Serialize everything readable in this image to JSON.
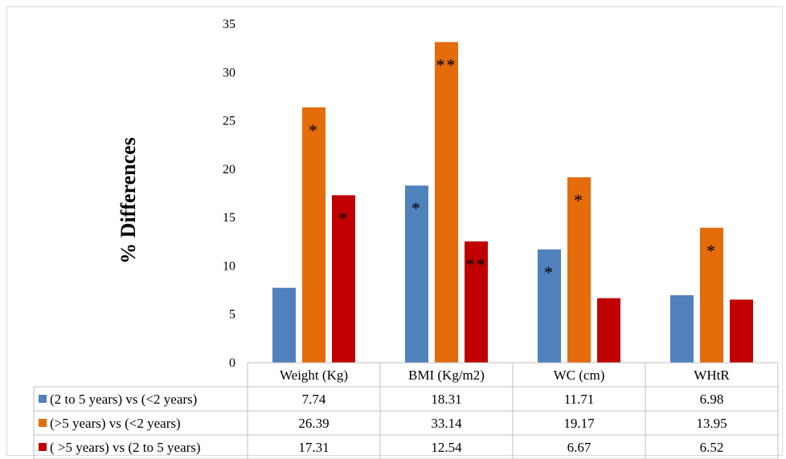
{
  "chart_data": {
    "type": "bar",
    "ylabel": "% Differences",
    "ylim": [
      0,
      35
    ],
    "yticks": [
      0,
      5,
      10,
      15,
      20,
      25,
      30,
      35
    ],
    "grid": false,
    "legend": "table-below",
    "categories": [
      "Weight (Kg)",
      "BMI (Kg/m2)",
      "WC (cm)",
      "WHtR"
    ],
    "series": [
      {
        "name": "(2 to 5 years) vs (<2 years)",
        "color": "#4f81bd",
        "values": [
          7.74,
          18.31,
          11.71,
          6.98
        ],
        "labels": [
          "7.74",
          "18.31",
          "11.71",
          "6.98"
        ],
        "annotations": [
          "",
          "*",
          "*",
          ""
        ]
      },
      {
        "name": "(>5 years) vs (<2 years)",
        "color": "#e46c0a",
        "values": [
          26.39,
          33.14,
          19.17,
          13.95
        ],
        "labels": [
          "26.39",
          "33.14",
          "19.17",
          "13.95"
        ],
        "annotations": [
          "*",
          "**",
          "*",
          "*"
        ]
      },
      {
        "name": "( >5 years) vs (2 to 5 years)",
        "color": "#c00000",
        "values": [
          17.31,
          12.54,
          6.67,
          6.52
        ],
        "labels": [
          "17.31",
          "12.54",
          "6.67",
          "6.52"
        ],
        "annotations": [
          "*",
          "**",
          "",
          ""
        ]
      }
    ]
  }
}
